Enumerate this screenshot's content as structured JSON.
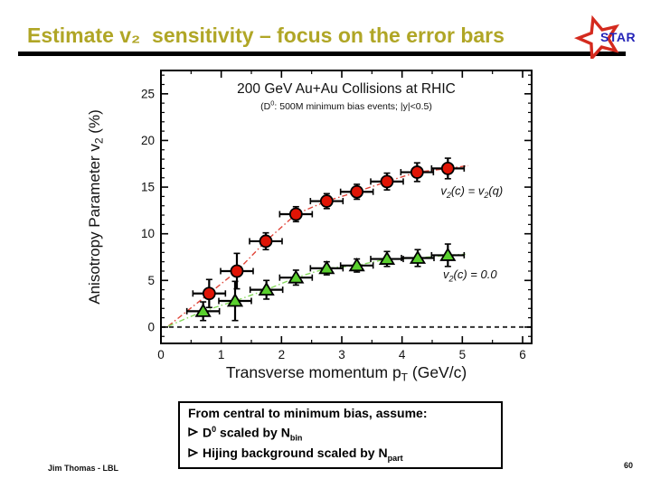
{
  "slide": {
    "title": "Estimate v₂  sensitivity – focus on the error bars",
    "title_color": "#b0a626",
    "footer_author": "Jim Thomas - LBL",
    "page_number": "60"
  },
  "logo": {
    "icon": "star-logo-icon",
    "text": "STAR",
    "star_color": "#d42a1e",
    "text_color": "#2424b8"
  },
  "chart_data": {
    "type": "scatter",
    "title": "200 GeV Au+Au Collisions at RHIC",
    "subtitle_parts": [
      {
        "t": "(D"
      },
      {
        "t": "0",
        "sup": true
      },
      {
        "t": ": 500M minimum bias events; |y|<0.5)"
      }
    ],
    "xlabel_parts": [
      {
        "t": "Transverse momentum p"
      },
      {
        "t": "T",
        "sub": true
      },
      {
        "t": " (GeV/c)"
      }
    ],
    "ylabel_parts": [
      {
        "t": "Anisotropy Parameter v"
      },
      {
        "t": "2",
        "sub": true
      },
      {
        "t": " (%)"
      }
    ],
    "xlim": [
      0,
      6.15
    ],
    "ylim": [
      -1.75,
      27.5
    ],
    "x_major_ticks": [
      0,
      1,
      2,
      3,
      4,
      5,
      6
    ],
    "x_minor_step": 0.5,
    "y_major_ticks": [
      0,
      5,
      10,
      15,
      20,
      25
    ],
    "y_minor_step": 1,
    "zero_line_y": 0,
    "frame_color": "#000000",
    "series": [
      {
        "name": "v2(c) = v2(q)",
        "marker": "circle",
        "marker_color": "#e01405",
        "line_color": "#e04438",
        "label_parts": [
          {
            "t": "v"
          },
          {
            "t": "2",
            "sub": true
          },
          {
            "t": "(c) = v"
          },
          {
            "t": "2",
            "sub": true
          },
          {
            "t": "(q)"
          }
        ],
        "label_pos": [
          4.64,
          14.2
        ],
        "x": [
          0.8,
          1.26,
          1.74,
          2.24,
          2.75,
          3.25,
          3.75,
          4.25,
          4.76
        ],
        "y": [
          3.6,
          6.0,
          9.2,
          12.1,
          13.5,
          14.5,
          15.6,
          16.6,
          17.0
        ],
        "yerr": [
          1.5,
          1.9,
          0.9,
          0.8,
          0.8,
          0.8,
          0.9,
          1.0,
          1.1
        ],
        "xerr": 0.27,
        "curve": [
          [
            0.12,
            0.1
          ],
          [
            0.8,
            3.6
          ],
          [
            1.26,
            6.0
          ],
          [
            1.74,
            9.2
          ],
          [
            2.24,
            12.1
          ],
          [
            2.75,
            13.5
          ],
          [
            3.25,
            14.5
          ],
          [
            3.75,
            15.6
          ],
          [
            4.25,
            16.6
          ],
          [
            4.76,
            17.0
          ],
          [
            5.1,
            17.3
          ]
        ]
      },
      {
        "name": "v2(c) = 0.0",
        "marker": "triangle",
        "marker_color": "#5ad02e",
        "line_color": "#86d95c",
        "label_parts": [
          {
            "t": "v"
          },
          {
            "t": "2",
            "sub": true
          },
          {
            "t": "(c) = 0.0"
          }
        ],
        "label_pos": [
          4.68,
          5.2
        ],
        "x": [
          0.7,
          1.23,
          1.75,
          2.24,
          2.75,
          3.25,
          3.75,
          4.26,
          4.76
        ],
        "y": [
          1.7,
          2.8,
          4.0,
          5.3,
          6.3,
          6.6,
          7.3,
          7.4,
          7.7
        ],
        "yerr": [
          1.0,
          2.1,
          1.0,
          0.8,
          0.7,
          0.7,
          0.8,
          0.9,
          1.2
        ],
        "xerr": 0.27,
        "curve": [
          [
            0.12,
            0.1
          ],
          [
            0.7,
            1.7
          ],
          [
            1.23,
            2.8
          ],
          [
            1.75,
            4.0
          ],
          [
            2.24,
            5.3
          ],
          [
            2.75,
            6.3
          ],
          [
            3.25,
            6.6
          ],
          [
            3.75,
            7.3
          ],
          [
            4.26,
            7.4
          ],
          [
            4.76,
            7.7
          ],
          [
            5.05,
            7.8
          ]
        ]
      }
    ]
  },
  "note": {
    "line1": "From central to minimum bias, assume:",
    "bullet_icon": "arrow-bullet-icon",
    "line2": {
      "pre": "D",
      "sup": "0",
      "mid": " scaled by N",
      "sub": "bin"
    },
    "line3": {
      "pre": "Hijing background scaled by N",
      "sub": "part"
    }
  }
}
